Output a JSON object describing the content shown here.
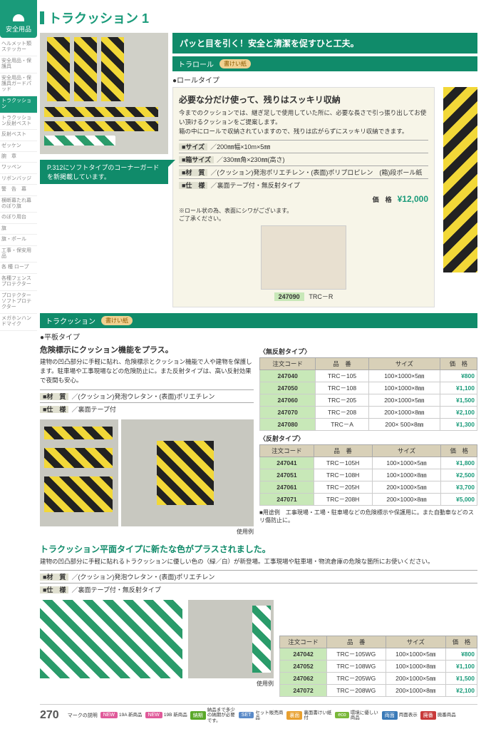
{
  "page_number": "270",
  "title": "トラクッション 1",
  "sidebar": {
    "header": "安全用品",
    "items": [
      "ヘルメット類ステッカー",
      "安全用品・保護具",
      "安全用品・保護具ガードパッド",
      "トラクッション",
      "トラクッション反射ベスト",
      "反射ベスト",
      "ゼッケン",
      "腕　章",
      "ワッペン",
      "リボンバッジ",
      "警　告　幕",
      "横断幕たれ幕のぼり旗",
      "のぼり用台",
      "旗",
      "旗・ポール",
      "工事・保安用品",
      "各 種 ロープ",
      "各種フェンスプロテクター",
      "プロテクターソフトプロテクター",
      "メガホンハンドマイク"
    ],
    "active_index": 3
  },
  "banner": "パッと目を引く！安全と清潔を促すひと工夫。",
  "section1": {
    "bar": "トラロール",
    "tag": "書けい紙",
    "type": "●ロールタイプ",
    "heading": "必要な分だけ使って、残りはスッキリ収納",
    "desc": "今までのクッションでは、継ぎ足しで使用していた所に、必要な長さで引っ張り出してお使い頂けるクッションをご提案します。\n箱の中にロールで収納されていますので、残りは広がらずにスッキリ収納できます。",
    "specs": [
      {
        "k": "■サイズ",
        "v": "200㎜幅×10m×5㎜"
      },
      {
        "k": "■箱サイズ",
        "v": "330㎜角×230㎜(高さ)"
      },
      {
        "k": "■材　質",
        "v": "(クッション)発泡ポリエチレン・(表面)ポリプロピレン　(箱)段ボール紙"
      },
      {
        "k": "■仕　様",
        "v": "裏面テープ付・無反射タイプ"
      }
    ],
    "price_label": "価　格",
    "price": "¥12,000",
    "note": "※ロール状の為、表面にシワがございます。\nご了承ください。",
    "callout": "P.312にソフトタイプのコーナーガードを新掲載しています。",
    "prod_code": "247090",
    "prod_name": "TRC－R"
  },
  "section2": {
    "bar": "トラクッション",
    "tag": "書けい紙",
    "type": "●平板タイプ",
    "heading": "危険標示にクッション機能をプラス。",
    "desc": "建物の凹凸部分に手軽に貼れ、危険標示とクッション機能で人や建物を保護します。駐車場や工事現場などの危険防止に。また反射タイプは、高い反射効果で夜間も安心。",
    "specs": [
      {
        "k": "■材　質",
        "v": "(クッション)発泡ウレタン・(表面)ポリエチレン"
      },
      {
        "k": "■仕　様",
        "v": "裏面テープ付"
      }
    ],
    "usage_label": "使用例",
    "table1_title": "〈無反射タイプ〉",
    "table2_title": "〈反射タイプ〉",
    "headers": [
      "注文コード",
      "品　番",
      "サイズ",
      "価　格"
    ],
    "rows1": [
      [
        "247040",
        "TRC－105",
        "100×1000×5㎜",
        "¥800"
      ],
      [
        "247050",
        "TRC－108",
        "100×1000×8㎜",
        "¥1,100"
      ],
      [
        "247060",
        "TRC－205",
        "200×1000×5㎜",
        "¥1,500"
      ],
      [
        "247070",
        "TRC－208",
        "200×1000×8㎜",
        "¥2,100"
      ],
      [
        "247080",
        "TRC－A",
        "200× 500×8㎜",
        "¥1,300"
      ]
    ],
    "rows2": [
      [
        "247041",
        "TRC－105H",
        "100×1000×5㎜",
        "¥1,800"
      ],
      [
        "247051",
        "TRC－108H",
        "100×1000×8㎜",
        "¥2,500"
      ],
      [
        "247061",
        "TRC－205H",
        "200×1000×5㎜",
        "¥3,700"
      ],
      [
        "247071",
        "TRC－208H",
        "200×1000×8㎜",
        "¥5,000"
      ]
    ],
    "usage_note": "■用途例　工事現場・工場・駐車場などの危険標示や保護用に。また自動車などのスリ傷防止に。"
  },
  "section3": {
    "heading": "トラクッション平面タイプに新たな色がプラスされました。",
    "desc": "建物の凹凸部分に手軽に貼れるトラクッションに優しい色の（緑／白）が新登場。工事現場や駐車場・物流倉庫の危険な箇所にお使いください。",
    "specs": [
      {
        "k": "■材　質",
        "v": "(クッション)発泡ウレタン・(表面)ポリエチレン"
      },
      {
        "k": "■仕　様",
        "v": "裏面テープ付・無反射タイプ"
      }
    ],
    "usage_label": "使用例",
    "headers": [
      "注文コード",
      "品　番",
      "サイズ",
      "価　格"
    ],
    "rows": [
      [
        "247042",
        "TRC－105WG",
        "100×1000×5㎜",
        "¥800"
      ],
      [
        "247052",
        "TRC－108WG",
        "100×1000×8㎜",
        "¥1,100"
      ],
      [
        "247062",
        "TRC－205WG",
        "200×1000×5㎜",
        "¥1,500"
      ],
      [
        "247072",
        "TRC－208WG",
        "200×1000×8㎜",
        "¥2,100"
      ]
    ]
  },
  "footer": {
    "label": "マークの説明",
    "items": [
      {
        "c": "#e05a9a",
        "t": "NEW",
        "d": "19A 新商品"
      },
      {
        "c": "#e05a9a",
        "t": "NEW",
        "d": "19B 新商品"
      },
      {
        "c": "#5aa82a",
        "t": "納期",
        "d": "納品まで多少の納期が必要です。"
      },
      {
        "c": "#5a8ac8",
        "t": "SET",
        "d": "セット販売商品"
      },
      {
        "c": "#e8a030",
        "t": "裏面",
        "d": "裏面書けい紙付"
      },
      {
        "c": "#7ab83a",
        "t": "eco",
        "d": "環境に優しい商品"
      },
      {
        "c": "#3a7ab8",
        "t": "両面",
        "d": "両面表示"
      },
      {
        "c": "#c83a3a",
        "t": "廃番",
        "d": "廃番商品"
      }
    ]
  }
}
